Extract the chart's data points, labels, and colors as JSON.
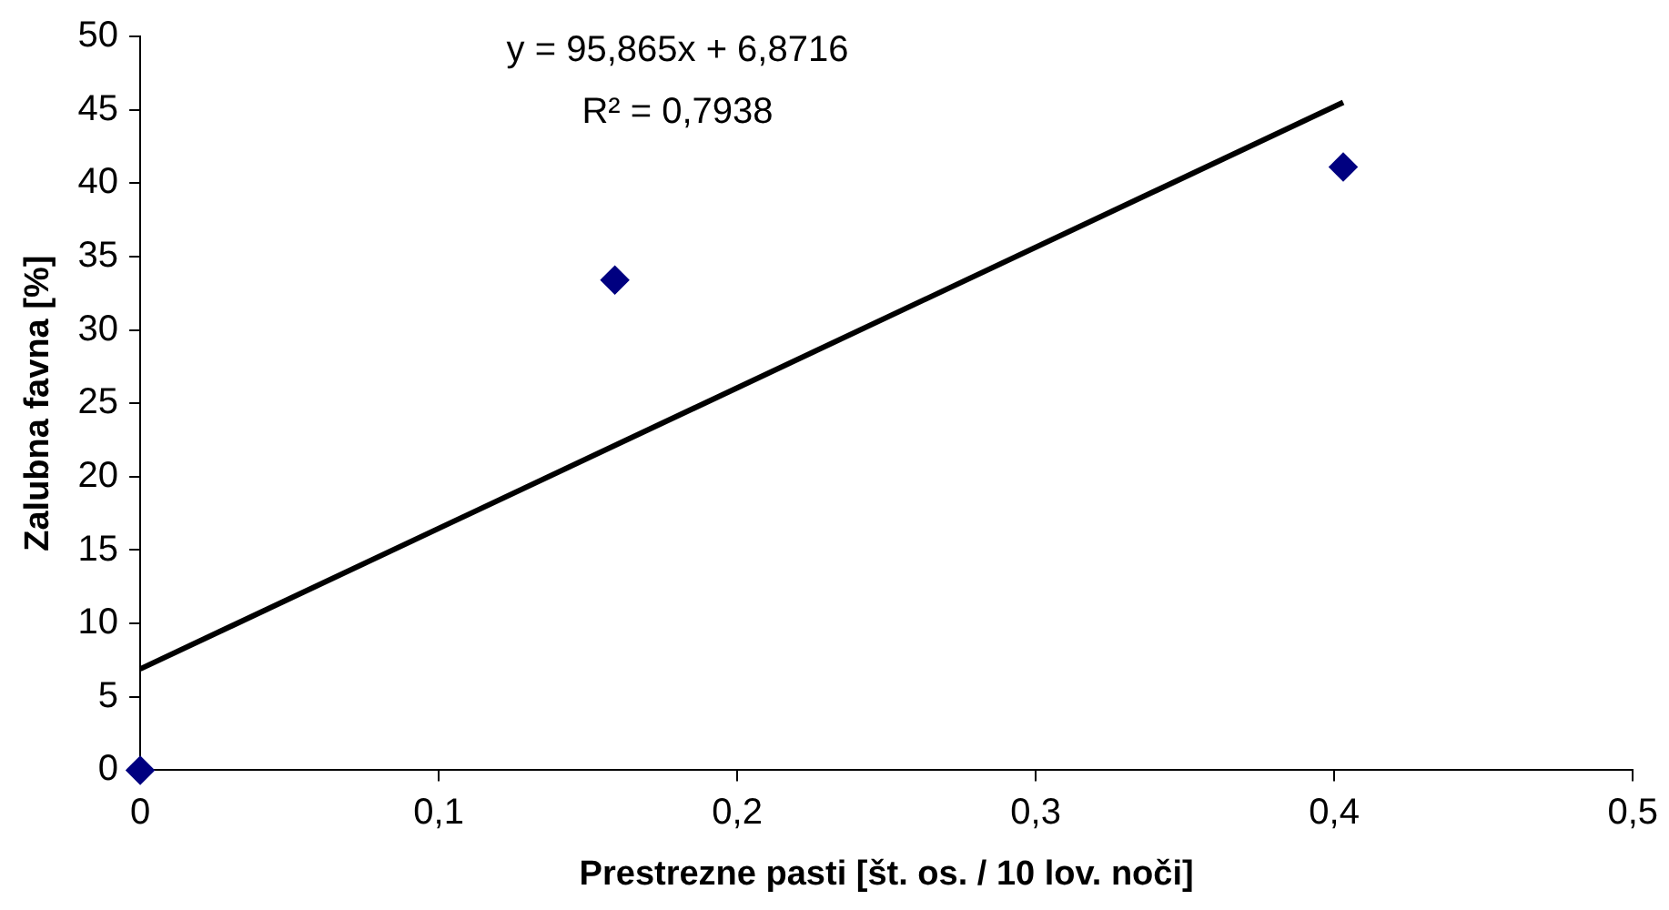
{
  "chart_data": {
    "type": "scatter",
    "xlabel": "Prestrezne pasti [št. os. / 10 lov. noči]",
    "ylabel": "Zalubna favna [%]",
    "series": [
      {
        "color": "#000080",
        "x": [
          0,
          0.159,
          0.403
        ],
        "values": [
          0,
          33.4,
          41.1
        ],
        "marker": "diamond"
      },
      {
        "type": "line",
        "color": "#000000",
        "x": [
          0,
          0.403
        ],
        "values": [
          6.9,
          45.5
        ],
        "marker": "none",
        "line_style": "solid"
      }
    ],
    "xlim": [
      0,
      0.5
    ],
    "xticks": [
      0,
      {
        "value": 0.1,
        "label": "0,1"
      },
      {
        "value": 0.2,
        "label": "0,2"
      },
      {
        "value": 0.3,
        "label": "0,3"
      },
      {
        "value": 0.4,
        "label": "0,4"
      },
      {
        "value": 0.5,
        "label": "0,5"
      }
    ],
    "ylim": [
      0,
      50
    ],
    "yticks": [
      0,
      5,
      10,
      15,
      20,
      25,
      30,
      35,
      40,
      45,
      50
    ],
    "grid": false,
    "legend": false,
    "annotations": [
      "y = 95,865x + 6,8716",
      "R² = 0,7938"
    ]
  }
}
